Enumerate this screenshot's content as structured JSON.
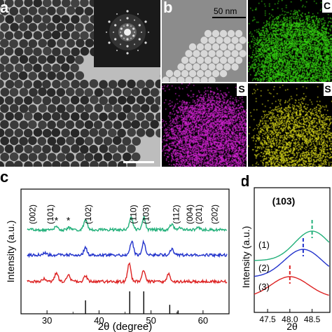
{
  "panels": {
    "a": {
      "letter": "a"
    },
    "b": {
      "letter": "b",
      "scale_bar_label": "50 nm"
    },
    "b_map_green": {
      "letter": "C",
      "color": "#33cc11"
    },
    "b_map_magenta": {
      "letter": "S",
      "color": "#cc22cc"
    },
    "b_map_yellow": {
      "letter": "S",
      "color": "#d8d81a"
    },
    "c": {
      "letter": "c"
    },
    "d": {
      "letter": "d"
    }
  },
  "chart_data": [
    {
      "panel": "c",
      "type": "line",
      "xlabel": "2θ (degree)",
      "ylabel": "Intensity (a.u.)",
      "xlim": [
        25,
        65
      ],
      "x_ticks": [
        30,
        40,
        50,
        60
      ],
      "grid": false,
      "series": [
        {
          "color": "#22b07a",
          "peaks": [
            [
              31.8,
              0.25
            ],
            [
              34.2,
              0.15
            ],
            [
              37.4,
              0.8
            ],
            [
              46.2,
              1.0
            ],
            [
              48.6,
              1.0
            ],
            [
              54.0,
              0.45
            ],
            [
              55.6,
              0.2
            ],
            [
              59.0,
              0.15
            ]
          ]
        },
        {
          "color": "#2233cc",
          "peaks": [
            [
              29.5,
              0.2
            ],
            [
              37.4,
              0.55
            ],
            [
              46.3,
              1.1
            ],
            [
              48.6,
              1.05
            ],
            [
              54.0,
              0.5
            ]
          ]
        },
        {
          "color": "#dd2222",
          "peaks": [
            [
              29.5,
              0.25
            ],
            [
              31.8,
              0.7
            ],
            [
              34.1,
              0.5
            ],
            [
              37.4,
              0.45
            ],
            [
              45.8,
              1.4
            ],
            [
              48.6,
              0.9
            ],
            [
              53.4,
              0.6
            ]
          ]
        }
      ],
      "reference_sticks": [
        {
          "x": 37.4,
          "height": 0.6
        },
        {
          "x": 45.9,
          "height": 1.0
        },
        {
          "x": 48.6,
          "height": 1.0
        },
        {
          "x": 53.6,
          "height": 0.4
        },
        {
          "x": 55.2,
          "height": 0.15
        }
      ],
      "annotations": [
        {
          "text": "(002)",
          "x": 26.8
        },
        {
          "text": "(101)",
          "x": 30.2
        },
        {
          "text": "*",
          "x": 31.8
        },
        {
          "text": "*",
          "x": 34.1
        },
        {
          "text": "(102)",
          "x": 37.5
        },
        {
          "text": "(110)",
          "x": 46.2
        },
        {
          "text": "(103)",
          "x": 48.6
        },
        {
          "text": "(112)",
          "x": 54.4
        },
        {
          "text": "(004)",
          "x": 57.0
        },
        {
          "text": "(201)",
          "x": 58.8
        },
        {
          "text": "(202)",
          "x": 61.8
        }
      ]
    },
    {
      "panel": "d",
      "type": "line",
      "title": "(103)",
      "xlabel": "2θ",
      "ylabel": "Intensity (a.u.)",
      "xlim": [
        47.2,
        48.9
      ],
      "x_ticks": [
        47.5,
        48.0,
        48.5
      ],
      "x_tick_labels": [
        "47.5",
        "48.0",
        "48.5"
      ],
      "grid": false,
      "series": [
        {
          "name": "(1)",
          "color": "#22b07a",
          "peak_x": 48.5
        },
        {
          "name": "(2)",
          "color": "#2233cc",
          "peak_x": 48.3
        },
        {
          "name": "(3)",
          "color": "#dd2222",
          "peak_x": 48.0
        }
      ]
    }
  ]
}
